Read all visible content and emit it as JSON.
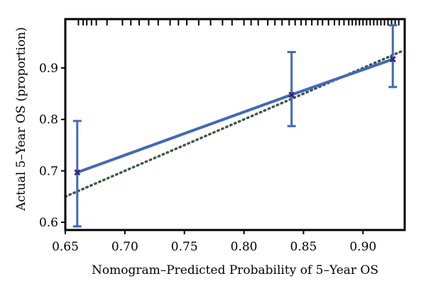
{
  "chart_data": {
    "type": "line",
    "xlabel": "Nomogram–Predicted Probability of 5–Year OS",
    "ylabel": "Actual 5–Year OS (proportion)",
    "xlim": [
      0.65,
      0.935
    ],
    "ylim": [
      0.585,
      0.995
    ],
    "x_ticks": [
      0.65,
      0.7,
      0.75,
      0.8,
      0.85,
      0.9
    ],
    "x_tick_labels": [
      "0.65",
      "0.70",
      "0.75",
      "0.80",
      "0.85",
      "0.90"
    ],
    "y_ticks": [
      0.6,
      0.7,
      0.8,
      0.9
    ],
    "y_tick_labels": [
      "0.6",
      "0.7",
      "0.8",
      "0.9"
    ],
    "grid": false,
    "series": [
      {
        "role": "calibration",
        "color": "#4169b8",
        "points": [
          {
            "x": 0.66,
            "y": 0.697,
            "lower": 0.592,
            "upper": 0.797
          },
          {
            "x": 0.84,
            "y": 0.848,
            "lower": 0.787,
            "upper": 0.931
          },
          {
            "x": 0.925,
            "y": 0.917,
            "lower": 0.863,
            "upper": 0.983
          }
        ]
      },
      {
        "role": "ideal",
        "style": "dotted",
        "color": "#3d5a4a",
        "x": [
          0.65,
          0.932
        ],
        "y": [
          0.65,
          0.932
        ]
      }
    ],
    "rug_x": [
      0.661,
      0.665,
      0.668,
      0.672,
      0.676,
      0.685,
      0.698,
      0.705,
      0.712,
      0.72,
      0.728,
      0.738,
      0.745,
      0.752,
      0.762,
      0.772,
      0.782,
      0.79,
      0.8,
      0.806,
      0.812,
      0.82,
      0.826,
      0.832,
      0.838,
      0.843,
      0.848,
      0.852,
      0.857,
      0.862,
      0.866,
      0.871,
      0.876,
      0.88,
      0.884,
      0.888,
      0.891,
      0.894,
      0.897,
      0.9,
      0.903,
      0.906,
      0.909,
      0.912,
      0.915,
      0.918,
      0.921,
      0.924,
      0.927,
      0.93
    ]
  }
}
